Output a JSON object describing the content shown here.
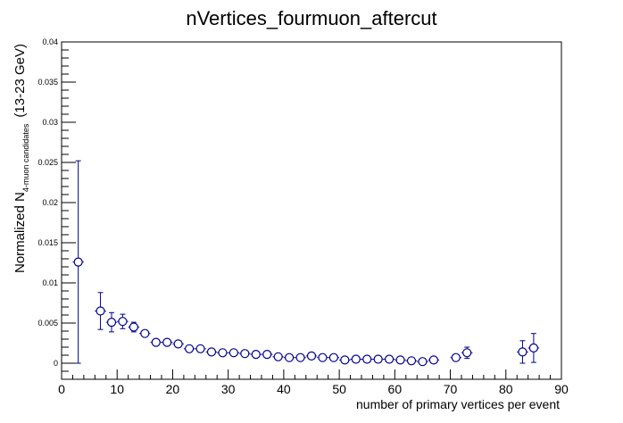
{
  "chart_data": {
    "type": "scatter",
    "title": "nVertices_fourmuon_aftercut",
    "xlabel": "number of primary vertices per event",
    "ylabel_main": "Normalized N",
    "ylabel_sub": "4-muon candidates",
    "ylabel_tail": "(13-23 GeV)",
    "xlim": [
      0,
      90
    ],
    "ylim": [
      -0.002,
      0.04
    ],
    "x_ticks": [
      "0",
      "10",
      "20",
      "30",
      "40",
      "50",
      "60",
      "70",
      "80",
      "90"
    ],
    "y_ticks": [
      "0",
      "0.005",
      "0.01",
      "0.015",
      "0.02",
      "0.025",
      "0.03",
      "0.035",
      "0.04"
    ],
    "grid": false,
    "marker_color": "#00008b",
    "points": [
      {
        "x": 3,
        "y": 0.0126,
        "err": 0.0126
      },
      {
        "x": 7,
        "y": 0.0065,
        "err": 0.0023
      },
      {
        "x": 9,
        "y": 0.0051,
        "err": 0.0012
      },
      {
        "x": 11,
        "y": 0.0052,
        "err": 0.0009
      },
      {
        "x": 13,
        "y": 0.0045,
        "err": 0.0006
      },
      {
        "x": 15,
        "y": 0.0037,
        "err": 0.0004
      },
      {
        "x": 17,
        "y": 0.0026,
        "err": 0.0003
      },
      {
        "x": 19,
        "y": 0.0026,
        "err": 0.0003
      },
      {
        "x": 21,
        "y": 0.0024,
        "err": 0.0003
      },
      {
        "x": 23,
        "y": 0.0018,
        "err": 0.0002
      },
      {
        "x": 25,
        "y": 0.0018,
        "err": 0.0002
      },
      {
        "x": 27,
        "y": 0.0014,
        "err": 0.0002
      },
      {
        "x": 29,
        "y": 0.0013,
        "err": 0.0002
      },
      {
        "x": 31,
        "y": 0.0013,
        "err": 0.0002
      },
      {
        "x": 33,
        "y": 0.0012,
        "err": 0.0002
      },
      {
        "x": 35,
        "y": 0.0011,
        "err": 0.0002
      },
      {
        "x": 37,
        "y": 0.0011,
        "err": 0.0002
      },
      {
        "x": 39,
        "y": 0.0008,
        "err": 0.0002
      },
      {
        "x": 41,
        "y": 0.0007,
        "err": 0.0002
      },
      {
        "x": 43,
        "y": 0.0007,
        "err": 0.0002
      },
      {
        "x": 45,
        "y": 0.0009,
        "err": 0.0002
      },
      {
        "x": 47,
        "y": 0.0007,
        "err": 0.0002
      },
      {
        "x": 49,
        "y": 0.0007,
        "err": 0.0002
      },
      {
        "x": 51,
        "y": 0.0004,
        "err": 0.0002
      },
      {
        "x": 53,
        "y": 0.0005,
        "err": 0.0002
      },
      {
        "x": 55,
        "y": 0.0005,
        "err": 0.0002
      },
      {
        "x": 57,
        "y": 0.0005,
        "err": 0.0002
      },
      {
        "x": 59,
        "y": 0.0005,
        "err": 0.0002
      },
      {
        "x": 61,
        "y": 0.0004,
        "err": 0.0002
      },
      {
        "x": 63,
        "y": 0.0003,
        "err": 0.0002
      },
      {
        "x": 65,
        "y": 0.0002,
        "err": 0.0002
      },
      {
        "x": 67,
        "y": 0.0004,
        "err": 0.0002
      },
      {
        "x": 71,
        "y": 0.0007,
        "err": 0.0004
      },
      {
        "x": 73,
        "y": 0.0013,
        "err": 0.0007
      },
      {
        "x": 83,
        "y": 0.0014,
        "err": 0.0014
      },
      {
        "x": 85,
        "y": 0.0019,
        "err": 0.0018
      }
    ]
  }
}
